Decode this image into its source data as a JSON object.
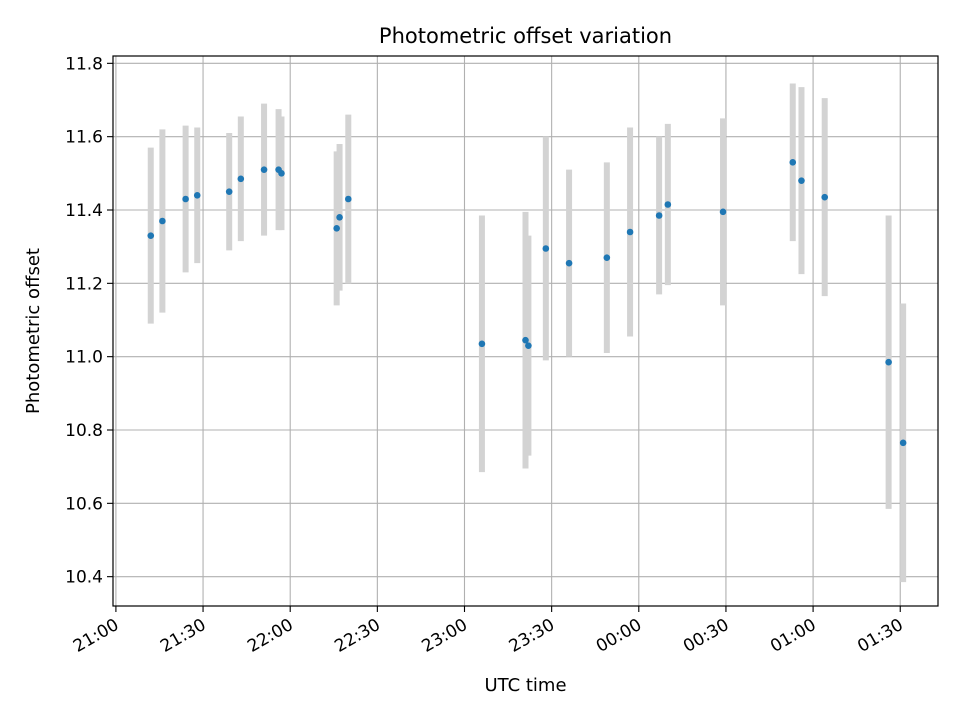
{
  "chart_data": {
    "type": "scatter",
    "title": "Photometric offset variation",
    "xlabel": "UTC time",
    "ylabel": "Photometric offset",
    "grid": true,
    "x_axis": {
      "unit": "UTC time",
      "range": [
        "20:59",
        "01:43"
      ],
      "tick_labels": [
        "21:00",
        "21:30",
        "22:00",
        "22:30",
        "23:00",
        "23:30",
        "00:00",
        "00:30",
        "01:00",
        "01:30"
      ]
    },
    "y_axis": {
      "range": [
        10.32,
        11.82
      ],
      "ticks": [
        10.4,
        10.6,
        10.8,
        11.0,
        11.2,
        11.4,
        11.6,
        11.8
      ],
      "tick_labels": [
        "10.4",
        "10.6",
        "10.8",
        "11.0",
        "11.2",
        "11.4",
        "11.6",
        "11.8"
      ]
    },
    "colors": {
      "point": "#1f77b4",
      "errorbar": "#d3d3d3",
      "grid": "#b0b0b0"
    },
    "series": [
      {
        "points": [
          {
            "x": "21:12",
            "y": 11.33,
            "yerr": 0.24
          },
          {
            "x": "21:16",
            "y": 11.37,
            "yerr": 0.25
          },
          {
            "x": "21:24",
            "y": 11.43,
            "yerr": 0.2
          },
          {
            "x": "21:28",
            "y": 11.44,
            "yerr": 0.185
          },
          {
            "x": "21:39",
            "y": 11.45,
            "yerr": 0.16
          },
          {
            "x": "21:43",
            "y": 11.485,
            "yerr": 0.17
          },
          {
            "x": "21:51",
            "y": 11.51,
            "yerr": 0.18
          },
          {
            "x": "21:56",
            "y": 11.51,
            "yerr": 0.165
          },
          {
            "x": "21:57",
            "y": 11.5,
            "yerr": 0.155
          },
          {
            "x": "22:16",
            "y": 11.35,
            "yerr": 0.21
          },
          {
            "x": "22:17",
            "y": 11.38,
            "yerr": 0.2
          },
          {
            "x": "22:20",
            "y": 11.43,
            "yerr": 0.23
          },
          {
            "x": "23:06",
            "y": 11.035,
            "yerr": 0.35
          },
          {
            "x": "23:21",
            "y": 11.045,
            "yerr": 0.35
          },
          {
            "x": "23:22",
            "y": 11.03,
            "yerr": 0.3
          },
          {
            "x": "23:28",
            "y": 11.295,
            "yerr": 0.305
          },
          {
            "x": "23:36",
            "y": 11.255,
            "yerr": 0.255
          },
          {
            "x": "23:49",
            "y": 11.27,
            "yerr": 0.26
          },
          {
            "x": "23:57",
            "y": 11.34,
            "yerr": 0.285
          },
          {
            "x": "00:07",
            "y": 11.385,
            "yerr": 0.215
          },
          {
            "x": "00:10",
            "y": 11.415,
            "yerr": 0.22
          },
          {
            "x": "00:29",
            "y": 11.395,
            "yerr": 0.255
          },
          {
            "x": "00:53",
            "y": 11.53,
            "yerr": 0.215
          },
          {
            "x": "00:56",
            "y": 11.48,
            "yerr": 0.255
          },
          {
            "x": "01:04",
            "y": 11.435,
            "yerr": 0.27
          },
          {
            "x": "01:26",
            "y": 10.985,
            "yerr": 0.4
          },
          {
            "x": "01:31",
            "y": 10.765,
            "yerr": 0.38
          }
        ]
      }
    ]
  }
}
